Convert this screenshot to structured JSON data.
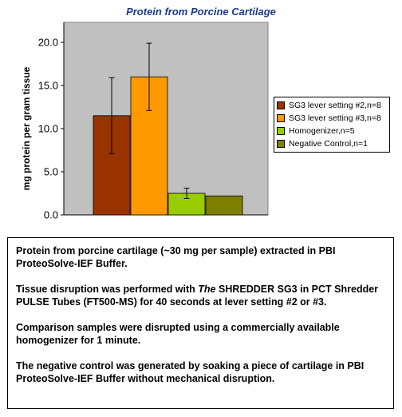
{
  "chart_data": {
    "type": "bar",
    "title": "Protein from Porcine Cartilage",
    "xlabel": "",
    "ylabel": "mg protein per gram tissue",
    "ylim": [
      0,
      20
    ],
    "yticks": [
      "0.0",
      "5.0",
      "10.0",
      "15.0",
      "20.0"
    ],
    "grid": false,
    "legend_position": "right",
    "series": [
      {
        "name": "SG3 lever setting #2,n=8",
        "value": 11.5,
        "error": 4.4,
        "color": "#993300"
      },
      {
        "name": "SG3 lever setting #3,n=8",
        "value": 16.0,
        "error": 3.9,
        "color": "#ff9900"
      },
      {
        "name": "Homogenizer,n=5",
        "value": 2.5,
        "error": 0.6,
        "color": "#99cc00"
      },
      {
        "name": "Negative Control,n=1",
        "value": 2.2,
        "error": null,
        "color": "#808000"
      }
    ]
  },
  "colors": {
    "plot_background": "#c0c0c0",
    "title_color": "#1a3a8c"
  },
  "description": {
    "p1": "Protein from porcine cartilage (~30 mg per sample) extracted in PBI ProteoSolve-IEF Buffer.",
    "p2_pre": "Tissue disruption was performed with ",
    "p2_italic": "The",
    "p2_post": " SHREDDER SG3 in PCT Shredder PULSE Tubes (FT500-MS) for 40 seconds at lever setting #2 or #3.",
    "p3": "Comparison samples were disrupted using a commercially available homogenizer for 1 minute.",
    "p4": "The negative control was generated by soaking a piece of cartilage in PBI ProteoSolve-IEF Buffer without mechanical disruption."
  }
}
